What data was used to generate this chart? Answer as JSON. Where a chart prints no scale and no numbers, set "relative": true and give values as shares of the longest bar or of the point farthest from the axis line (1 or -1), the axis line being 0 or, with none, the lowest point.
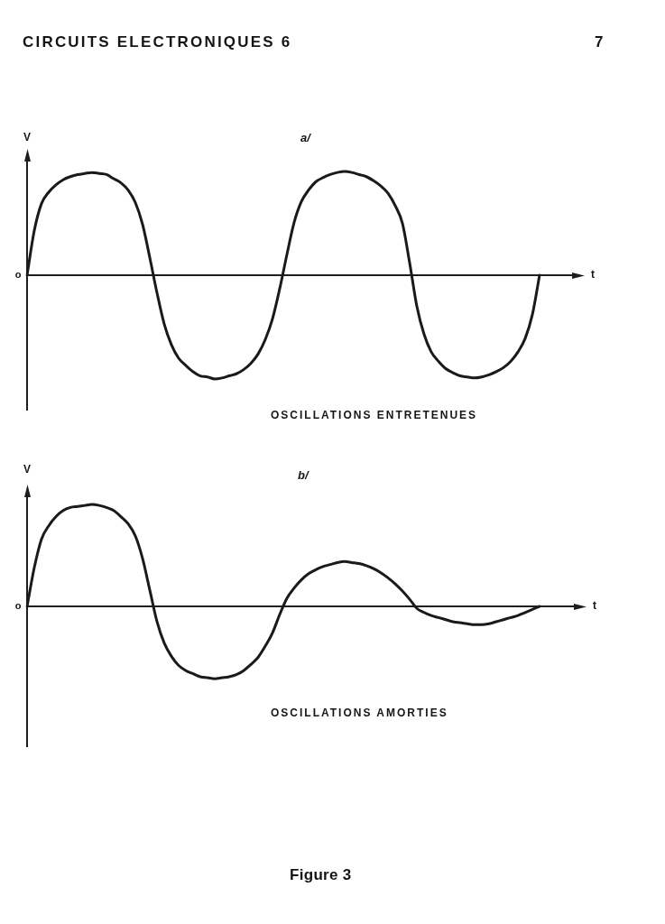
{
  "chart_data": [
    {
      "type": "line",
      "title": "a/",
      "subtitle": "OSCILLATIONS ENTRETENUES",
      "xlabel": "t",
      "ylabel": "V",
      "relative": true,
      "marker": "none",
      "line_style": "solid",
      "categories": [
        null,
        null,
        null,
        null,
        null,
        null,
        null,
        null,
        null,
        null,
        null,
        null,
        null,
        null,
        null,
        null,
        null,
        null,
        null,
        null,
        null,
        null,
        null,
        null,
        null,
        null,
        null,
        null,
        null,
        null,
        null,
        null,
        null,
        null,
        null,
        null,
        null,
        null,
        null,
        null,
        null,
        null,
        null,
        null,
        null,
        null,
        null,
        null,
        null,
        null,
        null,
        null,
        null,
        null,
        null,
        null,
        null,
        null,
        null,
        null,
        null,
        null,
        null,
        null,
        null,
        null,
        null,
        null,
        null,
        null,
        null,
        null
      ],
      "series": [
        {
          "color": "#1a1a1a",
          "values": [
            0,
            0.43,
            0.69,
            0.8,
            0.87,
            0.92,
            0.95,
            0.97,
            0.98,
            0.99,
            0.98,
            0.97,
            0.93,
            0.89,
            0.82,
            0.7,
            0.49,
            0.17,
            -0.17,
            -0.47,
            -0.67,
            -0.8,
            -0.87,
            -0.93,
            -0.97,
            -0.98,
            -1.0,
            -0.99,
            -0.97,
            -0.95,
            -0.91,
            -0.85,
            -0.76,
            -0.62,
            -0.42,
            -0.13,
            0.2,
            0.51,
            0.71,
            0.82,
            0.9,
            0.94,
            0.97,
            0.99,
            1.0,
            0.99,
            0.97,
            0.95,
            0.91,
            0.86,
            0.79,
            0.67,
            0.5,
            0.12,
            -0.3,
            -0.57,
            -0.74,
            -0.83,
            -0.9,
            -0.94,
            -0.97,
            -0.98,
            -0.99,
            -0.98,
            -0.96,
            -0.93,
            -0.89,
            -0.83,
            -0.74,
            -0.61,
            -0.38,
            0
          ]
        }
      ],
      "annotations": [
        "o",
        "CIRCUITS ELECTRONIQUES 6",
        "7"
      ]
    },
    {
      "type": "line",
      "title": "b/",
      "subtitle": "OSCILLATIONS AMORTIES",
      "xlabel": "t",
      "ylabel": "V",
      "relative": true,
      "marker": "none",
      "line_style": "solid",
      "categories": [
        null,
        null,
        null,
        null,
        null,
        null,
        null,
        null,
        null,
        null,
        null,
        null,
        null,
        null,
        null,
        null,
        null,
        null,
        null,
        null,
        null,
        null,
        null,
        null,
        null,
        null,
        null,
        null,
        null,
        null,
        null,
        null,
        null,
        null,
        null,
        null,
        null,
        null,
        null,
        null,
        null,
        null,
        null,
        null,
        null,
        null,
        null,
        null,
        null,
        null,
        null,
        null,
        null,
        null,
        null,
        null,
        null,
        null,
        null,
        null,
        null,
        null,
        null,
        null,
        null,
        null,
        null,
        null,
        null,
        null,
        null,
        null
      ],
      "series": [
        {
          "color": "#1a1a1a",
          "values": [
            0,
            0.38,
            0.66,
            0.79,
            0.88,
            0.94,
            0.97,
            0.98,
            0.99,
            1.0,
            0.99,
            0.97,
            0.94,
            0.88,
            0.81,
            0.69,
            0.47,
            0.16,
            -0.15,
            -0.36,
            -0.49,
            -0.58,
            -0.63,
            -0.66,
            -0.69,
            -0.7,
            -0.71,
            -0.7,
            -0.69,
            -0.67,
            -0.63,
            -0.57,
            -0.5,
            -0.39,
            -0.26,
            -0.08,
            0.08,
            0.18,
            0.26,
            0.32,
            0.36,
            0.39,
            0.41,
            0.43,
            0.44,
            0.43,
            0.42,
            0.4,
            0.37,
            0.33,
            0.28,
            0.22,
            0.15,
            0.07,
            -0.02,
            -0.06,
            -0.09,
            -0.11,
            -0.13,
            -0.15,
            -0.16,
            -0.17,
            -0.18,
            -0.18,
            -0.17,
            -0.15,
            -0.13,
            -0.11,
            -0.09,
            -0.06,
            -0.03,
            0
          ]
        }
      ],
      "annotations": [
        "o",
        "Figure 3"
      ]
    }
  ]
}
